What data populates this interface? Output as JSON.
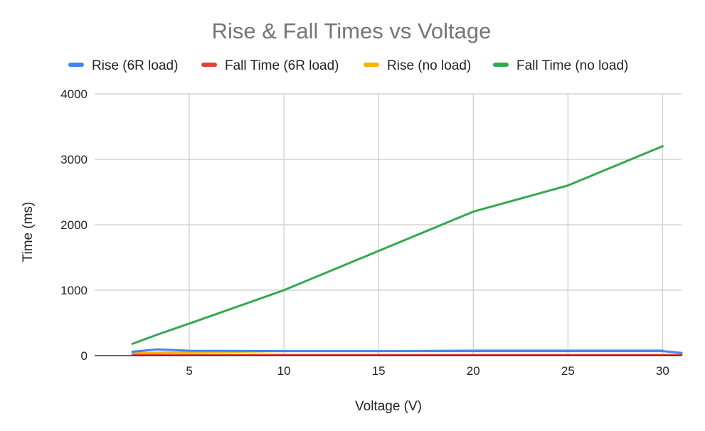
{
  "chart_data": {
    "type": "line",
    "title": "Rise & Fall Times vs Voltage",
    "xlabel": "Voltage (V)",
    "ylabel": "Time (ms)",
    "xlim": [
      0,
      31
    ],
    "ylim": [
      0,
      4000
    ],
    "xticks": [
      5,
      10,
      15,
      20,
      25,
      30
    ],
    "yticks": [
      0,
      1000,
      2000,
      3000,
      4000
    ],
    "grid": true,
    "legend_position": "top",
    "series": [
      {
        "name": "Rise (6R load)",
        "color": "#4285F4",
        "x": [
          2,
          3.3,
          5,
          10,
          15,
          20,
          25,
          30,
          31
        ],
        "y": [
          60,
          95,
          75,
          70,
          70,
          70,
          70,
          70,
          40
        ]
      },
      {
        "name": "Fall Time (6R load)",
        "color": "#DB4437",
        "x": [
          2,
          5,
          10,
          15,
          20,
          25,
          30,
          31
        ],
        "y": [
          10,
          10,
          10,
          10,
          10,
          10,
          10,
          10
        ]
      },
      {
        "name": "Rise (no load)",
        "color": "#F4B400",
        "x": [
          2,
          5,
          10,
          15,
          20,
          25,
          30
        ],
        "y": [
          40,
          50,
          70,
          70,
          80,
          80,
          80
        ]
      },
      {
        "name": "Fall Time (no load)",
        "color": "#34A853",
        "x": [
          2,
          3.3,
          5,
          10,
          15,
          20,
          25,
          30
        ],
        "y": [
          180,
          320,
          490,
          1000,
          1600,
          2200,
          2600,
          3200
        ]
      }
    ]
  }
}
